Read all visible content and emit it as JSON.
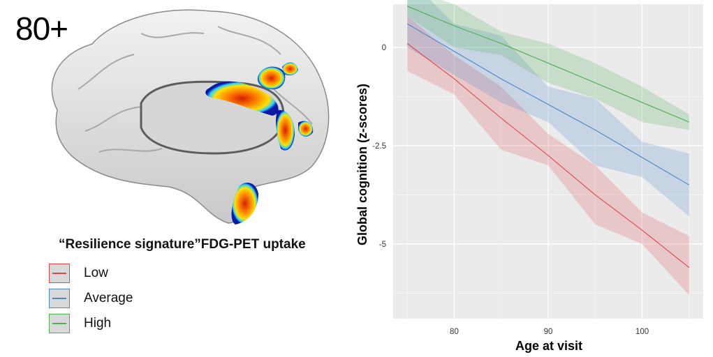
{
  "figure": {
    "age_group": "80+",
    "legend_title": "“Resilience signature”FDG-PET uptake",
    "legend": [
      {
        "label": "Low",
        "color": "#e0474c"
      },
      {
        "label": "Average",
        "color": "#4a86c8"
      },
      {
        "label": "High",
        "color": "#4caf50"
      }
    ]
  },
  "chart_data": {
    "type": "line",
    "xlabel": "Age at visit",
    "ylabel": "Global cognition (z-scores)",
    "xlim": [
      73.5,
      106.5
    ],
    "ylim": [
      -6.9,
      1.1
    ],
    "x_ticks": [
      80,
      90,
      100
    ],
    "x_tick_labels": [
      "80",
      "90",
      "100"
    ],
    "y_ticks": [
      0,
      -2.5,
      -5
    ],
    "y_tick_labels": [
      "0",
      "-2.5",
      "-5"
    ],
    "grid": true,
    "background": "#ebebeb",
    "x": [
      75,
      80,
      85,
      90,
      95,
      100,
      105
    ],
    "series": [
      {
        "name": "Low",
        "color": "#e0474c",
        "values": [
          0.1,
          -0.8,
          -1.8,
          -2.75,
          -3.75,
          -4.65,
          -5.6
        ],
        "lower": [
          -0.6,
          -1.2,
          -2.6,
          -3.0,
          -4.5,
          -5.0,
          -6.3
        ],
        "upper": [
          0.8,
          -0.2,
          -1.0,
          -2.2,
          -3.0,
          -4.2,
          -4.8
        ]
      },
      {
        "name": "Average",
        "color": "#4a86c8",
        "values": [
          0.6,
          -0.1,
          -0.8,
          -1.45,
          -2.1,
          -2.8,
          -3.5
        ],
        "lower": [
          0.0,
          -0.7,
          -1.4,
          -1.9,
          -3.0,
          -3.3,
          -4.3
        ],
        "upper": [
          1.8,
          0.6,
          0.3,
          -1.0,
          -1.3,
          -2.4,
          -2.7
        ]
      },
      {
        "name": "High",
        "color": "#4caf50",
        "values": [
          1.05,
          0.55,
          0.1,
          -0.4,
          -0.9,
          -1.4,
          -1.9
        ],
        "lower": [
          0.8,
          0.0,
          -0.2,
          -0.9,
          -1.3,
          -1.9,
          -2.1
        ],
        "upper": [
          1.5,
          1.1,
          0.4,
          0.1,
          -0.4,
          -1.0,
          -1.7
        ]
      }
    ]
  }
}
